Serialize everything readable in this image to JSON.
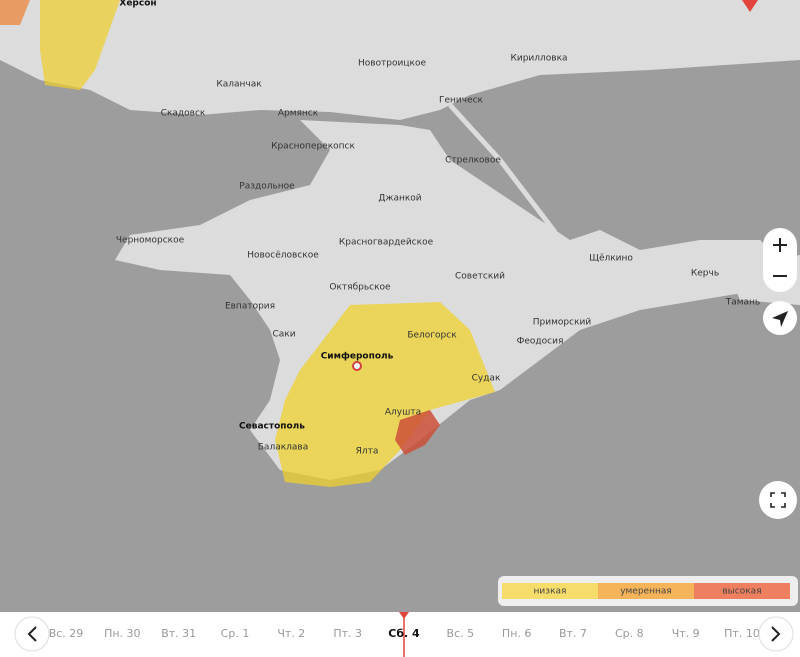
{
  "map": {
    "labels": [
      "Херсон",
      "Новотроицкое",
      "Кирилловка",
      "Каланчак",
      "Армянск",
      "Геническ",
      "Скадовск",
      "Красноперекопск",
      "Стрелковое",
      "Раздольное",
      "Джанкой",
      "Черноморское",
      "Новосёловское",
      "Красногвардейское",
      "Щёлкино",
      "Керчь",
      "Советский",
      "Октябрьское",
      "Тамань",
      "Евпатория",
      "Белогорск",
      "Приморский",
      "Саки",
      "Феодосия",
      "Симферополь",
      "Судак",
      "Алушта",
      "Севастополь",
      "Балаклава",
      "Ялта"
    ]
  },
  "legend": [
    "низкая",
    "умеренная",
    "высокая"
  ],
  "timeline": {
    "days": [
      "Вс. 29",
      "Пн. 30",
      "Вт. 31",
      "Ср. 1",
      "Чт. 2",
      "Пт. 3",
      "Сб. 4",
      "Вс. 5",
      "Пн. 6",
      "Вт. 7",
      "Ср. 8",
      "Чт. 9",
      "Пт. 10"
    ],
    "selected": 6
  }
}
